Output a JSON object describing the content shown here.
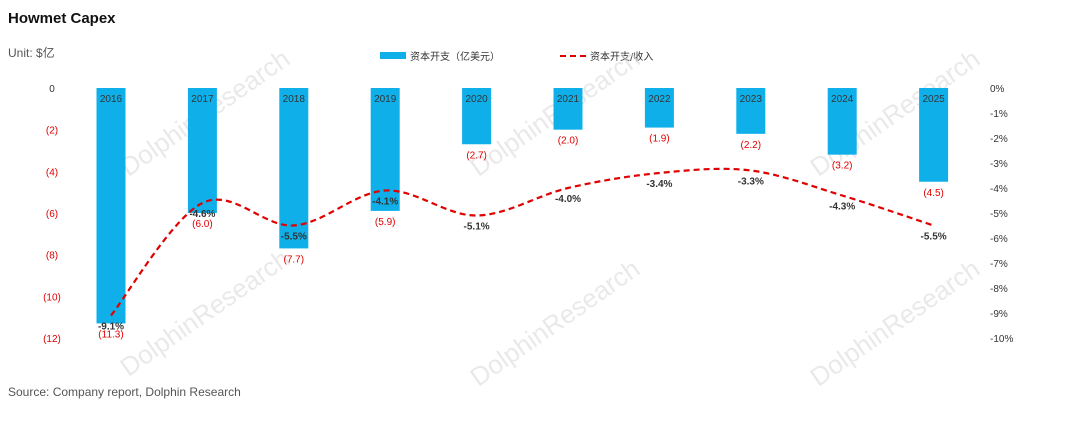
{
  "title": "Howmet Capex",
  "unit": "Unit: $亿",
  "source": "Source: Company report, Dolphin Research",
  "watermark": "DolphinResearch",
  "chart_data": {
    "type": "bar+line",
    "categories": [
      "2016",
      "2017",
      "2018",
      "2019",
      "2020",
      "2021",
      "2022",
      "2023",
      "2024",
      "2025"
    ],
    "series": [
      {
        "name": "资本开支（亿美元）",
        "type": "bar",
        "color": "#0fb0ea",
        "values": [
          -11.3,
          -6.0,
          -7.7,
          -5.9,
          -2.7,
          -2.0,
          -1.9,
          -2.2,
          -3.2,
          -4.5
        ],
        "labels": [
          "(11.3)",
          "(6.0)",
          "(7.7)",
          "(5.9)",
          "(2.7)",
          "(2.0)",
          "(1.9)",
          "(2.2)",
          "(3.2)",
          "(4.5)"
        ]
      },
      {
        "name": "资本开支/收入",
        "type": "line",
        "color": "#e00000",
        "axis": "right",
        "values": [
          -9.1,
          -4.6,
          -5.5,
          -4.1,
          -5.1,
          -4.0,
          -3.4,
          -3.3,
          -4.3,
          -5.5
        ],
        "labels": [
          "-9.1%",
          "-4.6%",
          "-5.5%",
          "-4.1%",
          "-5.1%",
          "-4.0%",
          "-3.4%",
          "-3.3%",
          "-4.3%",
          "-5.5%"
        ]
      }
    ],
    "left_axis": {
      "ylim": [
        -12,
        0
      ],
      "ticks": [
        0,
        -2,
        -4,
        -6,
        -8,
        -10,
        -12
      ],
      "tick_labels": [
        "0",
        "(2)",
        "(4)",
        "(6)",
        "(8)",
        "(10)",
        "(12)"
      ]
    },
    "right_axis": {
      "ylim": [
        -10,
        0
      ],
      "ticks": [
        0,
        -1,
        -2,
        -3,
        -4,
        -5,
        -6,
        -7,
        -8,
        -9,
        -10
      ],
      "tick_labels": [
        "0%",
        "-1%",
        "-2%",
        "-3%",
        "-4%",
        "-5%",
        "-6%",
        "-7%",
        "-8%",
        "-9%",
        "-10%"
      ]
    },
    "legend_position": "top-center",
    "grid": false
  }
}
